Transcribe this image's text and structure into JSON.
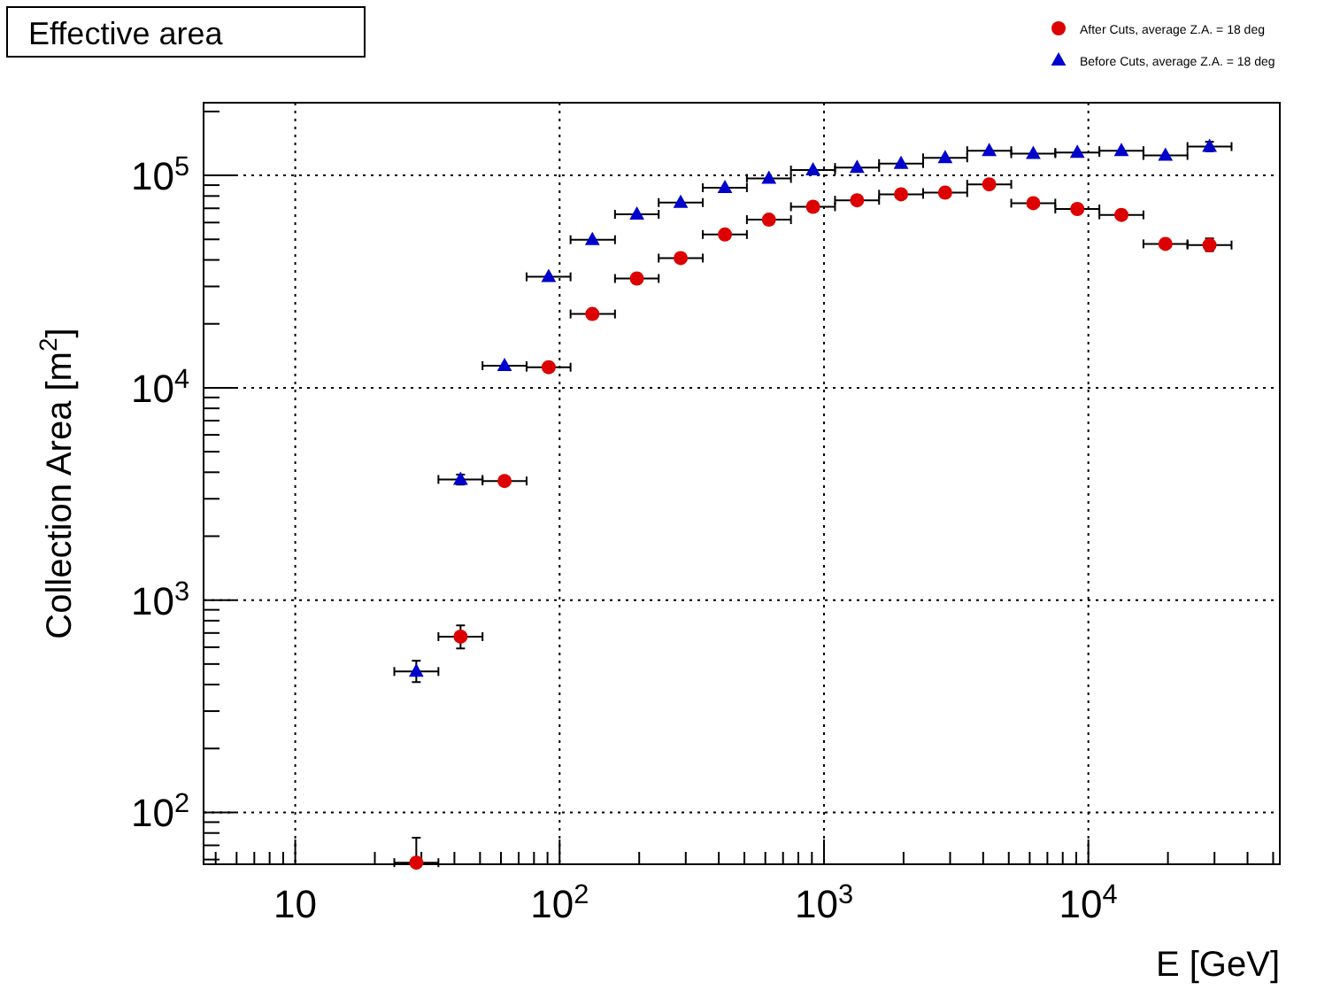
{
  "chart_data": {
    "type": "scatter",
    "title": "Effective area",
    "xlabel": "E [GeV]",
    "ylabel": "Collection Area [m$^{2}$]",
    "log": "xy",
    "grid": true,
    "legend": "top right",
    "xlim": [
      4.5,
      53000
    ],
    "ylim": [
      57,
      220000
    ],
    "xticks": [
      {
        "value": 5,
        "label": null
      },
      {
        "value": 6,
        "label": null
      },
      {
        "value": 7,
        "label": null
      },
      {
        "value": 8,
        "label": null
      },
      {
        "value": 9,
        "label": null
      },
      {
        "value": 10,
        "label": "10"
      },
      {
        "value": 20,
        "label": null
      },
      {
        "value": 30,
        "label": null
      },
      {
        "value": 40,
        "label": null
      },
      {
        "value": 50,
        "label": null
      },
      {
        "value": 60,
        "label": null
      },
      {
        "value": 70,
        "label": null
      },
      {
        "value": 80,
        "label": null
      },
      {
        "value": 90,
        "label": null
      },
      {
        "value": 100,
        "label": "10$^{2}$"
      },
      {
        "value": 200,
        "label": null
      },
      {
        "value": 300,
        "label": null
      },
      {
        "value": 400,
        "label": null
      },
      {
        "value": 500,
        "label": null
      },
      {
        "value": 600,
        "label": null
      },
      {
        "value": 700,
        "label": null
      },
      {
        "value": 800,
        "label": null
      },
      {
        "value": 900,
        "label": null
      },
      {
        "value": 1000,
        "label": "10$^{3}$"
      },
      {
        "value": 2000,
        "label": null
      },
      {
        "value": 3000,
        "label": null
      },
      {
        "value": 4000,
        "label": null
      },
      {
        "value": 5000,
        "label": null
      },
      {
        "value": 6000,
        "label": null
      },
      {
        "value": 7000,
        "label": null
      },
      {
        "value": 8000,
        "label": null
      },
      {
        "value": 9000,
        "label": null
      },
      {
        "value": 10000,
        "label": "10$^{4}$"
      },
      {
        "value": 20000,
        "label": null
      },
      {
        "value": 30000,
        "label": null
      },
      {
        "value": 40000,
        "label": null
      },
      {
        "value": 50000,
        "label": null
      }
    ],
    "yticks": [
      {
        "value": 60,
        "label": null
      },
      {
        "value": 70,
        "label": null
      },
      {
        "value": 80,
        "label": null
      },
      {
        "value": 90,
        "label": null
      },
      {
        "value": 100,
        "label": "10$^{2}$"
      },
      {
        "value": 200,
        "label": null
      },
      {
        "value": 300,
        "label": null
      },
      {
        "value": 400,
        "label": null
      },
      {
        "value": 500,
        "label": null
      },
      {
        "value": 600,
        "label": null
      },
      {
        "value": 700,
        "label": null
      },
      {
        "value": 800,
        "label": null
      },
      {
        "value": 900,
        "label": null
      },
      {
        "value": 1000,
        "label": "10$^{3}$"
      },
      {
        "value": 2000,
        "label": null
      },
      {
        "value": 3000,
        "label": null
      },
      {
        "value": 4000,
        "label": null
      },
      {
        "value": 5000,
        "label": null
      },
      {
        "value": 6000,
        "label": null
      },
      {
        "value": 7000,
        "label": null
      },
      {
        "value": 8000,
        "label": null
      },
      {
        "value": 9000,
        "label": null
      },
      {
        "value": 10000,
        "label": "10$^{4}$"
      },
      {
        "value": 20000,
        "label": null
      },
      {
        "value": 30000,
        "label": null
      },
      {
        "value": 40000,
        "label": null
      },
      {
        "value": 50000,
        "label": null
      },
      {
        "value": 60000,
        "label": null
      },
      {
        "value": 70000,
        "label": null
      },
      {
        "value": 80000,
        "label": null
      },
      {
        "value": 90000,
        "label": null
      },
      {
        "value": 100000,
        "label": "10$^{5}$"
      },
      {
        "value": 200000,
        "label": null
      }
    ],
    "series": [
      {
        "name": "After Cuts, average Z.A. = 18 deg",
        "color": "#dd0000",
        "marker": "circle",
        "x": [
          28.7,
          42.2,
          61.9,
          90.9,
          133,
          196,
          287,
          422,
          619,
          909,
          1334,
          1957,
          2873,
          4217,
          6190,
          9085,
          13335,
          19573,
          28730
        ],
        "values": [
          58,
          673,
          3640,
          12500,
          22250,
          32700,
          40800,
          52700,
          61900,
          71200,
          76400,
          81500,
          83000,
          90800,
          74000,
          69500,
          65200,
          47600,
          47000
        ],
        "errors": [
          [
            57,
            76
          ],
          [
            592,
            760
          ],
          null,
          null,
          null,
          null,
          null,
          null,
          null,
          null,
          null,
          null,
          null,
          null,
          null,
          null,
          null,
          null,
          [
            44000,
            50500
          ]
        ],
        "xerrors": [
          [
            23.7,
            34.8
          ],
          [
            34.8,
            51.1
          ],
          [
            51.1,
            75.0
          ],
          [
            75.0,
            110
          ],
          [
            110,
            162
          ],
          [
            162,
            237
          ],
          [
            237,
            348
          ],
          [
            348,
            511
          ],
          [
            511,
            750
          ],
          [
            750,
            1101
          ],
          [
            1101,
            1616
          ],
          [
            1616,
            2371
          ],
          [
            2371,
            3481
          ],
          [
            3481,
            5109
          ],
          [
            5109,
            7499
          ],
          [
            7499,
            11007
          ],
          [
            11007,
            16155
          ],
          [
            16155,
            23714
          ],
          [
            23714,
            34807
          ]
        ]
      },
      {
        "name": "Before Cuts, average Z.A. = 18 deg",
        "color": "#0000cc",
        "marker": "triangle",
        "x": [
          28.7,
          42.2,
          61.9,
          90.9,
          133,
          196,
          287,
          422,
          619,
          909,
          1334,
          1957,
          2873,
          4217,
          6190,
          9085,
          13335,
          19573,
          28730
        ],
        "values": [
          461,
          3700,
          12700,
          33300,
          49800,
          65600,
          74500,
          87500,
          96800,
          106000,
          109000,
          113700,
          121000,
          130800,
          126600,
          128300,
          130800,
          124200,
          136700
        ],
        "errors": [
          [
            411,
            518
          ],
          [
            3500,
            3900
          ],
          null,
          null,
          null,
          null,
          null,
          null,
          null,
          null,
          null,
          null,
          null,
          null,
          null,
          null,
          null,
          null,
          [
            130000,
            144000
          ]
        ],
        "xerrors": [
          [
            23.7,
            34.8
          ],
          [
            34.8,
            51.1
          ],
          [
            51.1,
            75.0
          ],
          [
            75.0,
            110
          ],
          [
            110,
            162
          ],
          [
            162,
            237
          ],
          [
            237,
            348
          ],
          [
            348,
            511
          ],
          [
            511,
            750
          ],
          [
            750,
            1101
          ],
          [
            1101,
            1616
          ],
          [
            1616,
            2371
          ],
          [
            2371,
            3481
          ],
          [
            3481,
            5109
          ],
          [
            5109,
            7499
          ],
          [
            7499,
            11007
          ],
          [
            11007,
            16155
          ],
          [
            16155,
            23714
          ],
          [
            23714,
            34807
          ]
        ]
      }
    ]
  }
}
